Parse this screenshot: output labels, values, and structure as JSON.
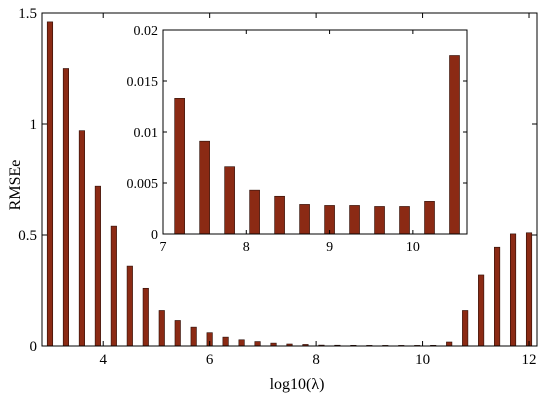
{
  "chart_data": [
    {
      "type": "bar",
      "xlabel": "log10(λ)",
      "ylabel": "RMSEe",
      "xlim": [
        2.85,
        12.15
      ],
      "ylim": [
        0,
        1.5
      ],
      "xticks": [
        "4",
        "6",
        "8",
        "10",
        "12"
      ],
      "xtick_values": [
        4,
        6,
        8,
        10,
        12
      ],
      "yticks": [
        "0",
        "0.5",
        "1",
        "1.5"
      ],
      "ytick_values": [
        0,
        0.5,
        1,
        1.5
      ],
      "grid": false,
      "series": [
        {
          "color": "#8b2a14",
          "x": [
            3.0,
            3.3,
            3.6,
            3.9,
            4.2,
            4.5,
            4.8,
            5.1,
            5.4,
            5.7,
            6.0,
            6.3,
            6.6,
            6.9,
            7.2,
            7.5,
            7.8,
            8.1,
            8.4,
            8.7,
            9.0,
            9.3,
            9.6,
            9.9,
            10.2,
            10.5,
            10.8,
            11.1,
            11.4,
            11.7,
            12.0
          ],
          "values": [
            1.46,
            1.25,
            0.97,
            0.72,
            0.54,
            0.36,
            0.26,
            0.16,
            0.115,
            0.085,
            0.06,
            0.04,
            0.028,
            0.02,
            0.013,
            0.009,
            0.007,
            0.004,
            0.0035,
            0.003,
            0.0028,
            0.0027,
            0.0027,
            0.0027,
            0.003,
            0.018,
            0.16,
            0.32,
            0.445,
            0.505,
            0.51
          ]
        }
      ]
    },
    {
      "type": "bar",
      "xlim": [
        7.0,
        10.65
      ],
      "ylim": [
        0,
        0.02
      ],
      "xticks": [
        "7",
        "8",
        "9",
        "10"
      ],
      "xtick_values": [
        7,
        8,
        9,
        10
      ],
      "yticks": [
        "0",
        "0.005",
        "0.01",
        "0.015",
        "0.02"
      ],
      "ytick_values": [
        0,
        0.005,
        0.01,
        0.015,
        0.02
      ],
      "grid": false,
      "series": [
        {
          "color": "#8b2a14",
          "x": [
            7.2,
            7.5,
            7.8,
            8.1,
            8.4,
            8.7,
            9.0,
            9.3,
            9.6,
            9.9,
            10.2,
            10.5
          ],
          "values": [
            0.0133,
            0.0091,
            0.0066,
            0.0043,
            0.0037,
            0.0029,
            0.0028,
            0.0028,
            0.0027,
            0.0027,
            0.0032,
            0.0175
          ]
        }
      ]
    }
  ]
}
